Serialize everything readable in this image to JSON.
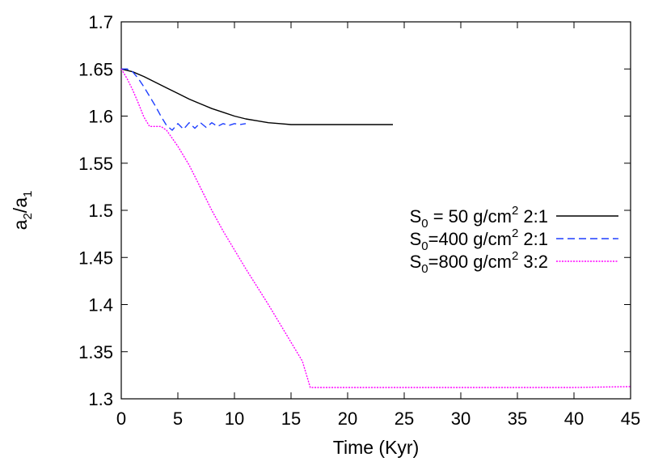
{
  "chart_data": {
    "type": "line",
    "title": "",
    "xlabel": "Time (Kyr)",
    "ylabel": {
      "main": "a",
      "sub1": "2",
      "slash": "/a",
      "sub2": "1"
    },
    "xlim": [
      0,
      45
    ],
    "ylim": [
      1.3,
      1.7
    ],
    "xticks": [
      0,
      5,
      10,
      15,
      20,
      25,
      30,
      35,
      40,
      45
    ],
    "yticks": [
      1.3,
      1.35,
      1.4,
      1.45,
      1.5,
      1.55,
      1.6,
      1.65,
      1.7
    ],
    "xtick_labels": [
      "0",
      "5",
      "10",
      "15",
      "20",
      "25",
      "30",
      "35",
      "40",
      "45"
    ],
    "ytick_labels": [
      "1.3",
      "1.35",
      "1.4",
      "1.45",
      "1.5",
      "1.55",
      "1.6",
      "1.65",
      "1.7"
    ],
    "grid": false,
    "legend_position": "right",
    "series": [
      {
        "legend": {
          "s": "S",
          "sub": "0",
          "mid": " = 50 g/cm",
          "sup": "2",
          "tail": " 2:1"
        },
        "color": "#000000",
        "dash": "solid",
        "x": [
          0,
          1,
          2,
          3,
          4,
          5,
          6,
          7,
          8,
          9,
          10,
          11,
          12,
          13,
          14,
          15,
          16,
          18,
          20,
          22,
          24
        ],
        "y": [
          1.65,
          1.647,
          1.642,
          1.636,
          1.63,
          1.624,
          1.618,
          1.613,
          1.608,
          1.604,
          1.6,
          1.597,
          1.595,
          1.593,
          1.592,
          1.591,
          1.591,
          1.591,
          1.591,
          1.591,
          1.591
        ]
      },
      {
        "legend": {
          "s": "S",
          "sub": "0",
          "mid": "=400 g/cm",
          "sup": "2",
          "tail": " 2:1"
        },
        "color": "#1f3fff",
        "dash": "dashed",
        "x": [
          0,
          0.5,
          1,
          1.5,
          2,
          2.5,
          3,
          3.5,
          4,
          4.5,
          5,
          5.5,
          6,
          6.5,
          7,
          7.5,
          8,
          8.5,
          9,
          9.5,
          10,
          10.5,
          11
        ],
        "y": [
          1.65,
          1.65,
          1.647,
          1.64,
          1.631,
          1.621,
          1.611,
          1.6,
          1.59,
          1.585,
          1.592,
          1.586,
          1.593,
          1.587,
          1.593,
          1.588,
          1.593,
          1.589,
          1.592,
          1.59,
          1.592,
          1.591,
          1.592
        ]
      },
      {
        "legend": {
          "s": "S",
          "sub": "0",
          "mid": "=800 g/cm",
          "sup": "2",
          "tail": " 3:2"
        },
        "color": "#ff00ff",
        "dash": "dotted",
        "x": [
          0,
          0.5,
          1,
          1.5,
          2,
          2.5,
          3,
          3.5,
          4,
          5,
          6,
          7,
          8,
          9,
          10,
          11,
          12,
          13,
          14,
          15,
          16,
          16.7,
          20,
          25,
          30,
          35,
          40,
          45
        ],
        "y": [
          1.65,
          1.64,
          1.628,
          1.614,
          1.599,
          1.589,
          1.589,
          1.589,
          1.585,
          1.568,
          1.548,
          1.524,
          1.5,
          1.478,
          1.458,
          1.438,
          1.419,
          1.4,
          1.38,
          1.36,
          1.34,
          1.312,
          1.312,
          1.312,
          1.312,
          1.312,
          1.312,
          1.313
        ]
      }
    ]
  }
}
